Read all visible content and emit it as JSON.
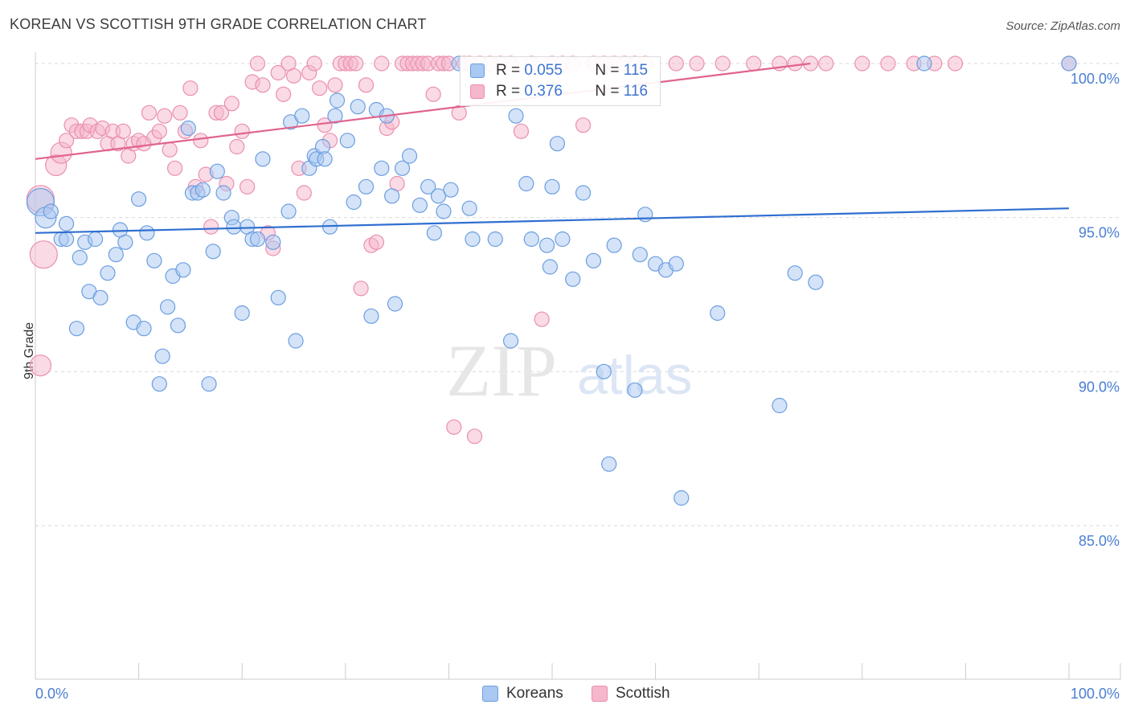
{
  "title": "KOREAN VS SCOTTISH 9TH GRADE CORRELATION CHART",
  "source": "Source: ZipAtlas.com",
  "watermark": {
    "zip": "ZIP",
    "atlas": "atlas"
  },
  "colors": {
    "korean_fill": "#a9c8f2",
    "korean_stroke": "#6b9ee0",
    "korean_line": "#2f6fd0",
    "scottish_fill": "#f6b6cb",
    "scottish_stroke": "#ea8fb0",
    "scottish_line": "#e0638f",
    "tick_text": "#4a7fd4",
    "grid": "#d9d9d9"
  },
  "stats": {
    "korean": {
      "r_label": "R =",
      "r_value": "0.055",
      "n_label": "N =",
      "n_value": "115"
    },
    "scottish": {
      "r_label": "R =",
      "r_value": "0.376",
      "n_label": "N =",
      "n_value": "116"
    }
  },
  "legend": {
    "korean": "Koreans",
    "scottish": "Scottish"
  },
  "chart_data": {
    "type": "scatter",
    "title": "KOREAN VS SCOTTISH 9TH GRADE CORRELATION CHART",
    "xlabel": "",
    "ylabel": "9th Grade",
    "xlim": [
      0,
      100
    ],
    "ylim": [
      80.5,
      100.8
    ],
    "y_ticks": [
      {
        "value": 100,
        "label": "100.0%"
      },
      {
        "value": 95,
        "label": "95.0%"
      },
      {
        "value": 90,
        "label": "90.0%"
      },
      {
        "value": 85,
        "label": "85.0%"
      }
    ],
    "x_tick_labels": [
      {
        "value": 0,
        "label": "0.0%"
      },
      {
        "value": 100,
        "label": "100.0%"
      }
    ],
    "grid": true,
    "legend_position": "bottom",
    "series": [
      {
        "name": "Koreans",
        "trend": {
          "x": [
            0,
            100
          ],
          "y": [
            94.5,
            95.3
          ]
        },
        "points": [
          [
            0.5,
            95.5,
            3
          ],
          [
            1,
            95.0,
            2
          ],
          [
            1.5,
            95.2,
            1
          ],
          [
            2.5,
            94.3,
            1
          ],
          [
            3,
            94.8,
            1
          ],
          [
            3,
            94.3,
            1
          ],
          [
            4,
            91.4,
            1
          ],
          [
            4.3,
            93.7,
            1
          ],
          [
            4.8,
            94.2,
            1
          ],
          [
            5.2,
            92.6,
            1
          ],
          [
            5.8,
            94.3,
            1
          ],
          [
            6.3,
            92.4,
            1
          ],
          [
            7,
            93.2,
            1
          ],
          [
            7.8,
            93.8,
            1
          ],
          [
            8.2,
            94.6,
            1
          ],
          [
            8.7,
            94.2,
            1
          ],
          [
            9.5,
            91.6,
            1
          ],
          [
            10,
            95.6,
            1
          ],
          [
            10.5,
            91.4,
            1
          ],
          [
            10.8,
            94.5,
            1
          ],
          [
            11.5,
            93.6,
            1
          ],
          [
            12,
            89.6,
            1
          ],
          [
            12.3,
            90.5,
            1
          ],
          [
            12.8,
            92.1,
            1
          ],
          [
            13.3,
            93.1,
            1
          ],
          [
            13.8,
            91.5,
            1
          ],
          [
            14.3,
            93.3,
            1
          ],
          [
            14.8,
            97.9,
            1
          ],
          [
            15.2,
            95.8,
            1
          ],
          [
            15.7,
            95.8,
            1
          ],
          [
            16.2,
            95.9,
            1
          ],
          [
            16.8,
            89.6,
            1
          ],
          [
            17.2,
            93.9,
            1
          ],
          [
            17.6,
            96.5,
            1
          ],
          [
            18.2,
            95.8,
            1
          ],
          [
            19,
            95.0,
            1
          ],
          [
            19.2,
            94.7,
            1
          ],
          [
            20,
            91.9,
            1
          ],
          [
            20.5,
            94.7,
            1
          ],
          [
            21,
            94.3,
            1
          ],
          [
            21.5,
            94.3,
            1
          ],
          [
            22,
            96.9,
            1
          ],
          [
            23,
            94.2,
            1
          ],
          [
            23.5,
            92.4,
            1
          ],
          [
            24.5,
            95.2,
            1
          ],
          [
            24.7,
            98.1,
            1
          ],
          [
            25.2,
            91.0,
            1
          ],
          [
            25.8,
            98.3,
            1
          ],
          [
            26.5,
            96.6,
            1
          ],
          [
            27,
            97.0,
            1
          ],
          [
            27.2,
            96.9,
            1
          ],
          [
            27.8,
            97.3,
            1
          ],
          [
            28,
            96.9,
            1
          ],
          [
            28.5,
            94.7,
            1
          ],
          [
            29,
            98.3,
            1
          ],
          [
            29.2,
            98.8,
            1
          ],
          [
            30.2,
            97.5,
            1
          ],
          [
            30.8,
            95.5,
            1
          ],
          [
            31.2,
            98.6,
            1
          ],
          [
            32,
            96.0,
            1
          ],
          [
            32.5,
            91.8,
            1
          ],
          [
            33,
            98.5,
            1
          ],
          [
            33.5,
            96.6,
            1
          ],
          [
            34,
            98.3,
            1
          ],
          [
            34.5,
            95.7,
            1
          ],
          [
            34.8,
            92.2,
            1
          ],
          [
            35.5,
            96.6,
            1
          ],
          [
            36.2,
            97.0,
            1
          ],
          [
            37.2,
            95.4,
            1
          ],
          [
            38,
            96.0,
            1
          ],
          [
            38.6,
            94.5,
            1
          ],
          [
            39,
            95.7,
            1
          ],
          [
            39.5,
            95.2,
            1
          ],
          [
            40.2,
            95.9,
            1
          ],
          [
            41,
            100.0,
            1
          ],
          [
            42,
            95.3,
            1
          ],
          [
            42.3,
            94.3,
            1
          ],
          [
            44.5,
            94.3,
            1
          ],
          [
            46,
            91.0,
            1
          ],
          [
            46.5,
            98.3,
            1
          ],
          [
            47.5,
            96.1,
            1
          ],
          [
            48,
            94.3,
            1
          ],
          [
            49.5,
            94.1,
            1
          ],
          [
            49.8,
            93.4,
            1
          ],
          [
            50,
            96.0,
            1
          ],
          [
            50.5,
            97.4,
            1
          ],
          [
            51,
            94.3,
            1
          ],
          [
            52,
            93.0,
            1
          ],
          [
            53,
            95.8,
            1
          ],
          [
            54,
            93.6,
            1
          ],
          [
            55,
            90.0,
            1
          ],
          [
            55.5,
            87.0,
            1
          ],
          [
            56,
            94.1,
            1
          ],
          [
            58,
            89.4,
            1
          ],
          [
            58.5,
            93.8,
            1
          ],
          [
            59,
            95.1,
            1
          ],
          [
            60,
            93.5,
            1
          ],
          [
            61,
            93.3,
            1
          ],
          [
            62,
            93.5,
            1
          ],
          [
            62.5,
            85.9,
            1
          ],
          [
            66,
            91.9,
            1
          ],
          [
            72,
            88.9,
            1
          ],
          [
            73.5,
            93.2,
            1
          ],
          [
            75.5,
            92.9,
            1
          ],
          [
            86,
            100.0,
            1
          ],
          [
            100,
            100.0,
            1
          ]
        ]
      },
      {
        "name": "Scottish",
        "trend": {
          "x": [
            0,
            75
          ],
          "y": [
            96.9,
            100.0
          ]
        },
        "points": [
          [
            0.5,
            95.6,
            3
          ],
          [
            0.8,
            93.8,
            3
          ],
          [
            0.5,
            90.2,
            2
          ],
          [
            2,
            96.7,
            2
          ],
          [
            2.5,
            97.1,
            2
          ],
          [
            3,
            97.5,
            1
          ],
          [
            3.5,
            98.0,
            1
          ],
          [
            4,
            97.8,
            1
          ],
          [
            4.5,
            97.8,
            1
          ],
          [
            5,
            97.8,
            1
          ],
          [
            5.3,
            98.0,
            1
          ],
          [
            6,
            97.8,
            1
          ],
          [
            6.5,
            97.9,
            1
          ],
          [
            7,
            97.4,
            1
          ],
          [
            7.5,
            97.8,
            1
          ],
          [
            8,
            97.4,
            1
          ],
          [
            8.5,
            97.8,
            1
          ],
          [
            9,
            97.0,
            1
          ],
          [
            9.5,
            97.4,
            1
          ],
          [
            10,
            97.5,
            1
          ],
          [
            10.5,
            97.4,
            1
          ],
          [
            11,
            98.4,
            1
          ],
          [
            11.5,
            97.6,
            1
          ],
          [
            12,
            97.8,
            1
          ],
          [
            12.5,
            98.3,
            1
          ],
          [
            13,
            97.2,
            1
          ],
          [
            13.5,
            96.6,
            1
          ],
          [
            14,
            98.4,
            1
          ],
          [
            14.5,
            97.8,
            1
          ],
          [
            15,
            99.2,
            1
          ],
          [
            15.5,
            96.0,
            1
          ],
          [
            16,
            97.5,
            1
          ],
          [
            16.5,
            96.4,
            1
          ],
          [
            17,
            94.7,
            1
          ],
          [
            17.5,
            98.4,
            1
          ],
          [
            18,
            98.4,
            1
          ],
          [
            18.5,
            96.1,
            1
          ],
          [
            19,
            98.7,
            1
          ],
          [
            19.5,
            97.3,
            1
          ],
          [
            20,
            97.8,
            1
          ],
          [
            20.5,
            96.0,
            1
          ],
          [
            21,
            99.4,
            1
          ],
          [
            21.5,
            100.0,
            1
          ],
          [
            22,
            99.3,
            1
          ],
          [
            22.5,
            94.5,
            1
          ],
          [
            23,
            94.0,
            1
          ],
          [
            23.5,
            99.7,
            1
          ],
          [
            24,
            99.0,
            1
          ],
          [
            24.5,
            100.0,
            1
          ],
          [
            25,
            99.6,
            1
          ],
          [
            25.5,
            96.6,
            1
          ],
          [
            26,
            95.8,
            1
          ],
          [
            26.5,
            99.7,
            1
          ],
          [
            27,
            100.0,
            1
          ],
          [
            27.5,
            99.2,
            1
          ],
          [
            28,
            98.0,
            1
          ],
          [
            28.5,
            97.5,
            1
          ],
          [
            29,
            99.3,
            1
          ],
          [
            29.5,
            100.0,
            1
          ],
          [
            30,
            100.0,
            1
          ],
          [
            30.5,
            100.0,
            1
          ],
          [
            31,
            100.0,
            1
          ],
          [
            31.5,
            92.7,
            1
          ],
          [
            32,
            99.3,
            1
          ],
          [
            32.5,
            94.1,
            1
          ],
          [
            33,
            94.2,
            1
          ],
          [
            33.5,
            100.0,
            1
          ],
          [
            34,
            97.9,
            1
          ],
          [
            34.5,
            98.1,
            1
          ],
          [
            35,
            96.1,
            1
          ],
          [
            35.5,
            100.0,
            1
          ],
          [
            36,
            100.0,
            1
          ],
          [
            36.5,
            100.0,
            1
          ],
          [
            37,
            100.0,
            1
          ],
          [
            37.5,
            100.0,
            1
          ],
          [
            38,
            100.0,
            1
          ],
          [
            38.5,
            99.0,
            1
          ],
          [
            39,
            100.0,
            1
          ],
          [
            39.5,
            100.0,
            1
          ],
          [
            40,
            100.0,
            1
          ],
          [
            40.5,
            88.2,
            1
          ],
          [
            41,
            98.4,
            1
          ],
          [
            41.5,
            100.0,
            1
          ],
          [
            42,
            100.0,
            1
          ],
          [
            42.5,
            87.9,
            1
          ],
          [
            43,
            100.0,
            1
          ],
          [
            44,
            100.0,
            1
          ],
          [
            45,
            100.0,
            1
          ],
          [
            46,
            100.0,
            1
          ],
          [
            47,
            97.8,
            1
          ],
          [
            48,
            100.0,
            1
          ],
          [
            49,
            91.7,
            1
          ],
          [
            50,
            100.0,
            1
          ],
          [
            51,
            100.0,
            1
          ],
          [
            52,
            100.0,
            1
          ],
          [
            53,
            98.0,
            1
          ],
          [
            54,
            100.0,
            1
          ],
          [
            55,
            100.0,
            1
          ],
          [
            56,
            100.0,
            1
          ],
          [
            57,
            100.0,
            1
          ],
          [
            58,
            100.0,
            1
          ],
          [
            59,
            100.0,
            1
          ],
          [
            62,
            100.0,
            1
          ],
          [
            64,
            100.0,
            1
          ],
          [
            66.5,
            100.0,
            1
          ],
          [
            69.5,
            100.0,
            1
          ],
          [
            72,
            100.0,
            1
          ],
          [
            73.5,
            100.0,
            1
          ],
          [
            75,
            100.0,
            1
          ],
          [
            76.5,
            100.0,
            1
          ],
          [
            80,
            100.0,
            1
          ],
          [
            82.5,
            100.0,
            1
          ],
          [
            85,
            100.0,
            1
          ],
          [
            87,
            100.0,
            1
          ],
          [
            89,
            100.0,
            1
          ],
          [
            100,
            100.0,
            1
          ]
        ]
      }
    ]
  }
}
